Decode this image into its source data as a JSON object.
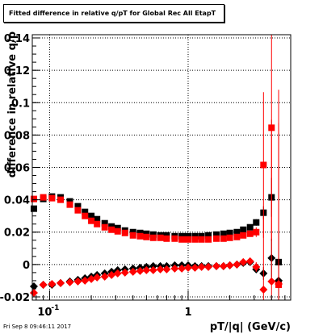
{
  "title": "Fitted difference in relative q/pT for Global Rec All EtapT",
  "footer": "Fri Sep  8 09:46:11 2017",
  "chart_data": {
    "type": "scatter",
    "title": "Fitted difference in relative q/pT for Global Rec All EtapT",
    "xlabel": "pT/|q| (GeV/c)",
    "ylabel": "difference in relative q/p",
    "xscale": "log",
    "xlim": [
      0.075,
      5.5
    ],
    "ylim": [
      -0.022,
      0.142
    ],
    "grid": true,
    "legend": "none",
    "y_ticks": [
      {
        "value": 0.14,
        "label": "0.14"
      },
      {
        "value": 0.12,
        "label": "0.12"
      },
      {
        "value": 0.1,
        "label": "0.1"
      },
      {
        "value": 0.08,
        "label": "0.08"
      },
      {
        "value": 0.06,
        "label": "0.06"
      },
      {
        "value": 0.04,
        "label": "0.04"
      },
      {
        "value": 0.02,
        "label": "0.02"
      },
      {
        "value": 0.0,
        "label": "0"
      },
      {
        "value": -0.02,
        "label": "-0.02"
      }
    ],
    "x_ticks": [
      {
        "value": 0.1,
        "label": "10",
        "sup": "-1"
      },
      {
        "value": 1,
        "label": "1",
        "sup": ""
      }
    ],
    "series": [
      {
        "color": "#000000",
        "marker": "square",
        "x": [
          0.077,
          0.09,
          0.104,
          0.12,
          0.14,
          0.16,
          0.18,
          0.2,
          0.22,
          0.25,
          0.28,
          0.31,
          0.35,
          0.4,
          0.45,
          0.5,
          0.56,
          0.63,
          0.7,
          0.8,
          0.9,
          1.0,
          1.12,
          1.25,
          1.4,
          1.6,
          1.8,
          2.0,
          2.25,
          2.5,
          2.8,
          3.1,
          3.5,
          4.0,
          4.5
        ],
        "y": [
          0.0345,
          0.0405,
          0.042,
          0.0415,
          0.039,
          0.036,
          0.0325,
          0.03,
          0.028,
          0.0255,
          0.0235,
          0.0225,
          0.021,
          0.02,
          0.0195,
          0.019,
          0.0185,
          0.018,
          0.018,
          0.0175,
          0.0175,
          0.0175,
          0.0175,
          0.0175,
          0.018,
          0.0185,
          0.019,
          0.0195,
          0.02,
          0.0215,
          0.023,
          0.026,
          0.032,
          0.0415,
          0.0015
        ],
        "yerr": [
          0,
          0,
          0,
          0,
          0,
          0,
          0,
          0,
          0,
          0,
          0,
          0,
          0,
          0,
          0,
          0,
          0,
          0,
          0,
          0,
          0,
          0,
          0,
          0,
          0,
          0,
          0,
          0,
          0,
          0,
          0,
          0.002,
          0.004,
          0.012,
          0.08
        ]
      },
      {
        "color": "#ff0000",
        "marker": "square",
        "x": [
          0.077,
          0.09,
          0.104,
          0.12,
          0.14,
          0.16,
          0.18,
          0.2,
          0.22,
          0.25,
          0.28,
          0.31,
          0.35,
          0.4,
          0.45,
          0.5,
          0.56,
          0.63,
          0.7,
          0.8,
          0.9,
          1.0,
          1.12,
          1.25,
          1.4,
          1.6,
          1.8,
          2.0,
          2.25,
          2.5,
          2.8,
          3.1,
          3.5,
          4.0,
          4.5
        ],
        "y": [
          0.0405,
          0.0415,
          0.041,
          0.04,
          0.037,
          0.0335,
          0.03,
          0.027,
          0.025,
          0.023,
          0.0215,
          0.0205,
          0.0195,
          0.018,
          0.0175,
          0.017,
          0.0165,
          0.0165,
          0.016,
          0.016,
          0.0155,
          0.0155,
          0.0155,
          0.0155,
          0.0155,
          0.016,
          0.016,
          0.0165,
          0.017,
          0.018,
          0.019,
          0.02,
          0.0615,
          0.0845,
          -0.0125
        ],
        "yerr": [
          0,
          0,
          0,
          0,
          0,
          0,
          0,
          0,
          0,
          0,
          0,
          0,
          0,
          0,
          0,
          0,
          0,
          0,
          0,
          0,
          0,
          0,
          0,
          0,
          0,
          0,
          0,
          0,
          0,
          0,
          0,
          0.003,
          0.045,
          0.07,
          0.1
        ]
      },
      {
        "color": "#000000",
        "marker": "diamond",
        "x": [
          0.077,
          0.09,
          0.104,
          0.12,
          0.14,
          0.16,
          0.18,
          0.2,
          0.22,
          0.25,
          0.28,
          0.31,
          0.35,
          0.4,
          0.45,
          0.5,
          0.56,
          0.63,
          0.7,
          0.8,
          0.9,
          1.0,
          1.12,
          1.25,
          1.4,
          1.6,
          1.8,
          2.0,
          2.25,
          2.5,
          2.8,
          3.1,
          3.5,
          4.0,
          4.5
        ],
        "y": [
          -0.0135,
          -0.0125,
          -0.0125,
          -0.0115,
          -0.0105,
          -0.0095,
          -0.0085,
          -0.0075,
          -0.0065,
          -0.0055,
          -0.0045,
          -0.0035,
          -0.003,
          -0.0025,
          -0.002,
          -0.0015,
          -0.001,
          -0.001,
          -0.001,
          -0.0005,
          -0.0005,
          -0.0005,
          -0.001,
          -0.001,
          -0.001,
          -0.001,
          -0.001,
          -0.0005,
          0.0,
          0.001,
          0.0015,
          -0.003,
          -0.0055,
          0.004,
          -0.01
        ],
        "yerr": [
          0,
          0,
          0,
          0,
          0,
          0,
          0,
          0,
          0,
          0,
          0,
          0,
          0,
          0,
          0,
          0,
          0,
          0,
          0,
          0,
          0,
          0,
          0,
          0,
          0,
          0,
          0,
          0,
          0,
          0,
          0,
          0.002,
          0.004,
          0.012,
          0.03
        ]
      },
      {
        "color": "#ff0000",
        "marker": "diamond",
        "x": [
          0.077,
          0.09,
          0.104,
          0.12,
          0.14,
          0.16,
          0.18,
          0.2,
          0.22,
          0.25,
          0.28,
          0.31,
          0.35,
          0.4,
          0.45,
          0.5,
          0.56,
          0.63,
          0.7,
          0.8,
          0.9,
          1.0,
          1.12,
          1.25,
          1.4,
          1.6,
          1.8,
          2.0,
          2.25,
          2.5,
          2.8,
          3.1,
          3.5,
          4.0,
          4.5
        ],
        "y": [
          -0.0175,
          -0.0125,
          -0.012,
          -0.0115,
          -0.011,
          -0.0105,
          -0.01,
          -0.009,
          -0.008,
          -0.0075,
          -0.0065,
          -0.0055,
          -0.005,
          -0.0045,
          -0.004,
          -0.0035,
          -0.0035,
          -0.003,
          -0.003,
          -0.0025,
          -0.0025,
          -0.002,
          -0.002,
          -0.0015,
          -0.0015,
          -0.001,
          -0.001,
          -0.0005,
          0.0,
          0.0015,
          0.002,
          -0.0015,
          -0.0155,
          -0.0105,
          -0.012
        ],
        "yerr": [
          0,
          0,
          0,
          0,
          0,
          0,
          0,
          0,
          0,
          0,
          0,
          0,
          0,
          0,
          0,
          0,
          0,
          0,
          0,
          0,
          0,
          0,
          0,
          0,
          0,
          0,
          0,
          0,
          0,
          0,
          0,
          0.003,
          0.045,
          0.1,
          0.12
        ]
      }
    ]
  }
}
